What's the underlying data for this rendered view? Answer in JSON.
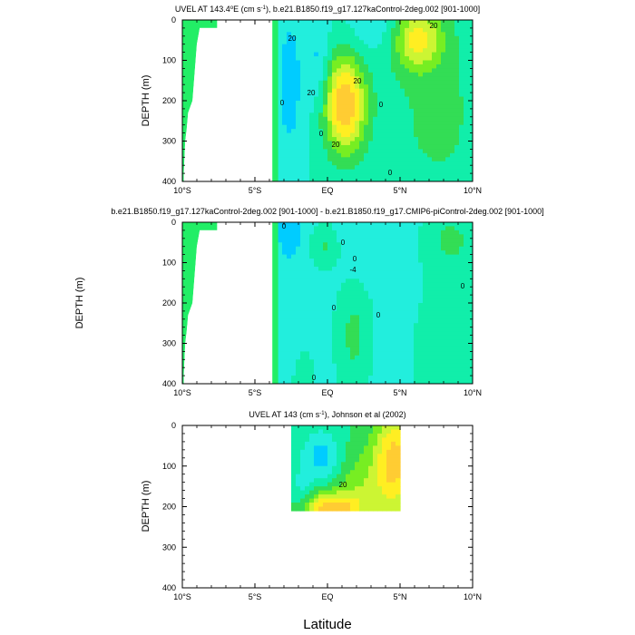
{
  "colors": {
    "white_mask": "#ffffff",
    "land": "#22ee66",
    "levels": [
      "#00ccff",
      "#22eedd",
      "#11eeaa",
      "#33dd55",
      "#77ee22",
      "#ccf533",
      "#ffee22",
      "#ffcc33"
    ]
  },
  "chart_data": [
    {
      "type": "heatmap",
      "panel": "top",
      "title_parts": [
        "UVEL AT 143.4",
        "o",
        "E (cm s",
        "-1",
        "), b.e21.B1850.f19_g17.127kaControl-2deg.002 [901-1000]"
      ],
      "xlabel": "",
      "ylabel": "DEPTH (m)",
      "xlim": [
        -10,
        10
      ],
      "ylim": [
        400,
        0
      ],
      "xticks": [
        "10°S",
        "5°S",
        "EQ",
        "5°N",
        "10°N"
      ],
      "yticks": [
        "0",
        "100",
        "200",
        "300",
        "400"
      ],
      "contour_labels": [
        "20",
        "20",
        "20",
        "20",
        "0",
        "0",
        "0",
        "0",
        "20"
      ],
      "field": {
        "base": 2,
        "blobs": [
          {
            "x": 1.2,
            "y": 210,
            "sx": 1.0,
            "sy": 85,
            "a": 6
          },
          {
            "x": 6.2,
            "y": 45,
            "sx": 1.2,
            "sy": 55,
            "a": 4
          },
          {
            "x": 7.6,
            "y": 230,
            "sx": 2.8,
            "sy": 200,
            "a": 1.2
          },
          {
            "x": -2.6,
            "y": 160,
            "sx": 0.7,
            "sy": 140,
            "a": -1.5
          },
          {
            "x": -0.6,
            "y": 110,
            "sx": 0.5,
            "sy": 80,
            "a": -1.4
          },
          {
            "x": 3.4,
            "y": 20,
            "sx": 1.5,
            "sy": 50,
            "a": -1.0
          }
        ]
      }
    },
    {
      "type": "heatmap",
      "panel": "middle",
      "title": "b.e21.B1850.f19_g17.127kaControl-2deg.002 [901-1000] - b.e21.B1850.f19_g17.CMIP6-piControl-2deg.002 [901-1000]",
      "xlabel": "",
      "ylabel": "DEPTH (m)",
      "xlim": [
        -10,
        10
      ],
      "ylim": [
        400,
        0
      ],
      "xticks": [
        "10°S",
        "5°S",
        "EQ",
        "5°N",
        "10°N"
      ],
      "yticks": [
        "0",
        "100",
        "200",
        "300",
        "400"
      ],
      "contour_labels": [
        "0",
        "0",
        "0",
        "0",
        "0",
        "-4",
        "0",
        "0"
      ],
      "field": {
        "base": 1.5,
        "blobs": [
          {
            "x": -2.6,
            "y": 20,
            "sx": 0.45,
            "sy": 40,
            "a": -2.0
          },
          {
            "x": -0.2,
            "y": 60,
            "sx": 0.7,
            "sy": 40,
            "a": 1.6
          },
          {
            "x": 1.8,
            "y": 280,
            "sx": 0.9,
            "sy": 110,
            "a": 1.7
          },
          {
            "x": 8.5,
            "y": 40,
            "sx": 1.4,
            "sy": 60,
            "a": 1.5
          },
          {
            "x": 9.0,
            "y": 330,
            "sx": 2.2,
            "sy": 150,
            "a": 1.4
          },
          {
            "x": -1.6,
            "y": 400,
            "sx": 0.8,
            "sy": 80,
            "a": 0.8
          },
          {
            "x": 2.5,
            "y": 70,
            "sx": 1.1,
            "sy": 60,
            "a": -0.6
          }
        ]
      }
    },
    {
      "type": "heatmap",
      "panel": "bottom",
      "title_parts": [
        "UVEL AT 143 (cm s",
        "-1",
        "), Johnson et al (2002)"
      ],
      "xlabel": "Latitude",
      "ylabel": "DEPTH (m)",
      "xlim": [
        -10,
        10
      ],
      "ylim": [
        400,
        0
      ],
      "xticks": [
        "10°S",
        "5°S",
        "EQ",
        "5°N",
        "10°N"
      ],
      "yticks": [
        "0",
        "100",
        "200",
        "300",
        "400"
      ],
      "contour_labels": [
        "20"
      ],
      "data_extent": {
        "xmin": -2.5,
        "xmax": 5,
        "ymax": 210
      },
      "field": {
        "base": 3,
        "blobs": [
          {
            "x": 0.2,
            "y": 210,
            "sx": 1.5,
            "sy": 30,
            "a": 5
          },
          {
            "x": 4.6,
            "y": 90,
            "sx": 1.0,
            "sy": 90,
            "a": 4.5
          },
          {
            "x": -0.4,
            "y": 75,
            "sx": 0.9,
            "sy": 45,
            "a": -2.5
          },
          {
            "x": -1.8,
            "y": 190,
            "sx": 0.6,
            "sy": 60,
            "a": -1.5
          },
          {
            "x": 2.2,
            "y": 150,
            "sx": 1.2,
            "sy": 60,
            "a": 1.5
          }
        ]
      }
    }
  ]
}
